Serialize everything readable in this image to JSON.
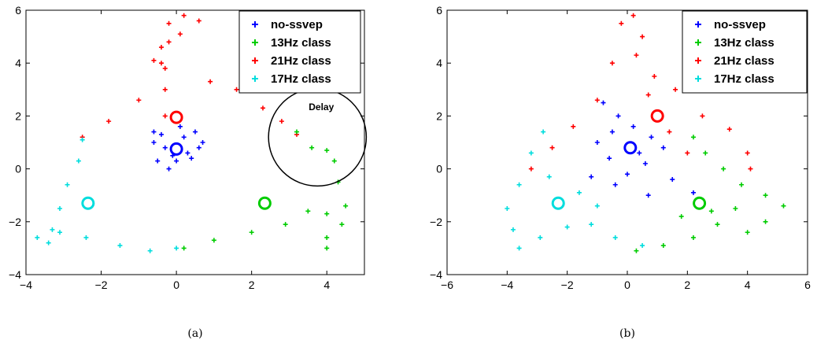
{
  "chart_data": [
    {
      "type": "scatter",
      "caption": "(a)",
      "xlim": [
        -4,
        5
      ],
      "ylim": [
        -4,
        6
      ],
      "xticks": [
        -4,
        -2,
        0,
        2,
        4
      ],
      "yticks": [
        -4,
        -2,
        0,
        2,
        4,
        6
      ],
      "grid": false,
      "legend": "top-right",
      "legend_entries": [
        {
          "label": "no-ssvep",
          "color": "#0000ff"
        },
        {
          "label": "13Hz class",
          "color": "#00cc00"
        },
        {
          "label": "21Hz class",
          "color": "#ff0000"
        },
        {
          "label": "17Hz class",
          "color": "#00dddd"
        }
      ],
      "annotations": [
        {
          "text": "Delay",
          "x": 3.75,
          "y": 1.2,
          "radius": 1.3
        }
      ],
      "class_centers": [
        {
          "color": "#ff0000",
          "x": 0.0,
          "y": 1.95
        },
        {
          "color": "#0000ff",
          "x": 0.0,
          "y": 0.75
        },
        {
          "color": "#00dddd",
          "x": -2.35,
          "y": -1.3
        },
        {
          "color": "#00cc00",
          "x": 2.35,
          "y": -1.3
        }
      ],
      "series": [
        {
          "color": "#0000ff",
          "points": [
            [
              -0.4,
              1.3
            ],
            [
              -0.6,
              1.0
            ],
            [
              -0.3,
              0.8
            ],
            [
              0.1,
              1.6
            ],
            [
              0.5,
              1.4
            ],
            [
              0.7,
              1.0
            ],
            [
              0.4,
              0.4
            ],
            [
              0.0,
              0.3
            ],
            [
              -0.5,
              0.3
            ],
            [
              -0.2,
              0.0
            ],
            [
              0.3,
              0.6
            ],
            [
              0.6,
              0.8
            ],
            [
              -0.6,
              1.4
            ],
            [
              0.2,
              1.2
            ],
            [
              -0.1,
              0.5
            ]
          ]
        },
        {
          "color": "#ff0000",
          "points": [
            [
              -2.5,
              1.2
            ],
            [
              -1.8,
              1.8
            ],
            [
              -1.0,
              2.6
            ],
            [
              -0.4,
              4.0
            ],
            [
              -0.2,
              4.8
            ],
            [
              -0.2,
              5.5
            ],
            [
              0.2,
              5.8
            ],
            [
              0.6,
              5.6
            ],
            [
              0.1,
              5.1
            ],
            [
              -0.4,
              4.6
            ],
            [
              -0.6,
              4.1
            ],
            [
              -0.3,
              3.8
            ],
            [
              -0.3,
              3.0
            ],
            [
              -0.3,
              2.0
            ],
            [
              0.9,
              3.3
            ],
            [
              1.6,
              3.0
            ],
            [
              2.3,
              2.3
            ],
            [
              2.8,
              1.8
            ],
            [
              3.2,
              1.3
            ]
          ]
        },
        {
          "color": "#00cc00",
          "points": [
            [
              3.2,
              1.4
            ],
            [
              3.6,
              0.8
            ],
            [
              4.0,
              0.7
            ],
            [
              4.2,
              0.3
            ],
            [
              4.3,
              -0.5
            ],
            [
              4.5,
              -1.4
            ],
            [
              4.4,
              -2.1
            ],
            [
              4.0,
              -1.7
            ],
            [
              3.5,
              -1.6
            ],
            [
              2.9,
              -2.1
            ],
            [
              2.0,
              -2.4
            ],
            [
              1.0,
              -2.7
            ],
            [
              0.2,
              -3.0
            ],
            [
              4.0,
              -2.6
            ],
            [
              4.0,
              -3.0
            ]
          ]
        },
        {
          "color": "#00dddd",
          "points": [
            [
              -2.5,
              1.1
            ],
            [
              -2.6,
              0.3
            ],
            [
              -2.9,
              -0.6
            ],
            [
              -3.1,
              -1.5
            ],
            [
              -3.3,
              -2.3
            ],
            [
              -3.7,
              -2.6
            ],
            [
              -3.4,
              -2.8
            ],
            [
              -3.1,
              -2.4
            ],
            [
              -2.4,
              -2.6
            ],
            [
              -1.5,
              -2.9
            ],
            [
              -0.7,
              -3.1
            ],
            [
              0.0,
              -3.0
            ]
          ]
        }
      ]
    },
    {
      "type": "scatter",
      "caption": "(b)",
      "xlim": [
        -6,
        6
      ],
      "ylim": [
        -4,
        6
      ],
      "xticks": [
        -6,
        -4,
        -2,
        0,
        2,
        4,
        6
      ],
      "yticks": [
        -4,
        -2,
        0,
        2,
        4,
        6
      ],
      "grid": false,
      "legend": "top-right",
      "legend_entries": [
        {
          "label": "no-ssvep",
          "color": "#0000ff"
        },
        {
          "label": "13Hz class",
          "color": "#00cc00"
        },
        {
          "label": "21Hz class",
          "color": "#ff0000"
        },
        {
          "label": "17Hz class",
          "color": "#00dddd"
        }
      ],
      "class_centers": [
        {
          "color": "#ff0000",
          "x": 1.0,
          "y": 2.0
        },
        {
          "color": "#0000ff",
          "x": 0.1,
          "y": 0.8
        },
        {
          "color": "#00dddd",
          "x": -2.3,
          "y": -1.3
        },
        {
          "color": "#00cc00",
          "x": 2.4,
          "y": -1.3
        }
      ],
      "series": [
        {
          "color": "#0000ff",
          "points": [
            [
              -0.8,
              2.5
            ],
            [
              -0.3,
              2.0
            ],
            [
              0.2,
              1.6
            ],
            [
              0.8,
              1.2
            ],
            [
              1.2,
              0.8
            ],
            [
              0.6,
              0.2
            ],
            [
              0.0,
              -0.2
            ],
            [
              -0.6,
              0.4
            ],
            [
              -1.0,
              1.0
            ],
            [
              -0.5,
              1.4
            ],
            [
              0.4,
              0.6
            ],
            [
              1.5,
              -0.4
            ],
            [
              2.2,
              -0.9
            ],
            [
              -1.2,
              -0.3
            ],
            [
              -0.4,
              -0.6
            ],
            [
              0.7,
              -1.0
            ]
          ]
        },
        {
          "color": "#ff0000",
          "points": [
            [
              -3.2,
              0.0
            ],
            [
              -2.5,
              0.8
            ],
            [
              -1.8,
              1.6
            ],
            [
              -1.0,
              2.6
            ],
            [
              -0.5,
              4.0
            ],
            [
              -0.2,
              5.5
            ],
            [
              0.2,
              5.8
            ],
            [
              0.5,
              5.0
            ],
            [
              0.3,
              4.3
            ],
            [
              0.9,
              3.5
            ],
            [
              1.6,
              3.0
            ],
            [
              2.5,
              2.0
            ],
            [
              3.4,
              1.5
            ],
            [
              4.0,
              0.6
            ],
            [
              4.1,
              0.0
            ],
            [
              0.7,
              2.8
            ],
            [
              1.4,
              1.4
            ],
            [
              2.0,
              0.6
            ]
          ]
        },
        {
          "color": "#00cc00",
          "points": [
            [
              2.2,
              1.2
            ],
            [
              2.6,
              0.6
            ],
            [
              3.2,
              0.0
            ],
            [
              3.8,
              -0.6
            ],
            [
              4.6,
              -1.0
            ],
            [
              5.2,
              -1.4
            ],
            [
              4.6,
              -2.0
            ],
            [
              4.0,
              -2.4
            ],
            [
              3.0,
              -2.1
            ],
            [
              2.2,
              -2.6
            ],
            [
              1.2,
              -2.9
            ],
            [
              0.3,
              -3.1
            ],
            [
              1.8,
              -1.8
            ],
            [
              2.8,
              -1.6
            ],
            [
              3.6,
              -1.5
            ]
          ]
        },
        {
          "color": "#00dddd",
          "points": [
            [
              -2.8,
              1.4
            ],
            [
              -3.2,
              0.6
            ],
            [
              -3.6,
              -0.6
            ],
            [
              -4.0,
              -1.5
            ],
            [
              -3.8,
              -2.3
            ],
            [
              -3.6,
              -3.0
            ],
            [
              -2.9,
              -2.6
            ],
            [
              -2.0,
              -2.2
            ],
            [
              -1.2,
              -2.1
            ],
            [
              -0.4,
              -2.6
            ],
            [
              0.5,
              -2.9
            ],
            [
              -1.6,
              -0.9
            ],
            [
              -2.6,
              -0.3
            ],
            [
              -1.0,
              -1.4
            ]
          ]
        }
      ]
    }
  ]
}
